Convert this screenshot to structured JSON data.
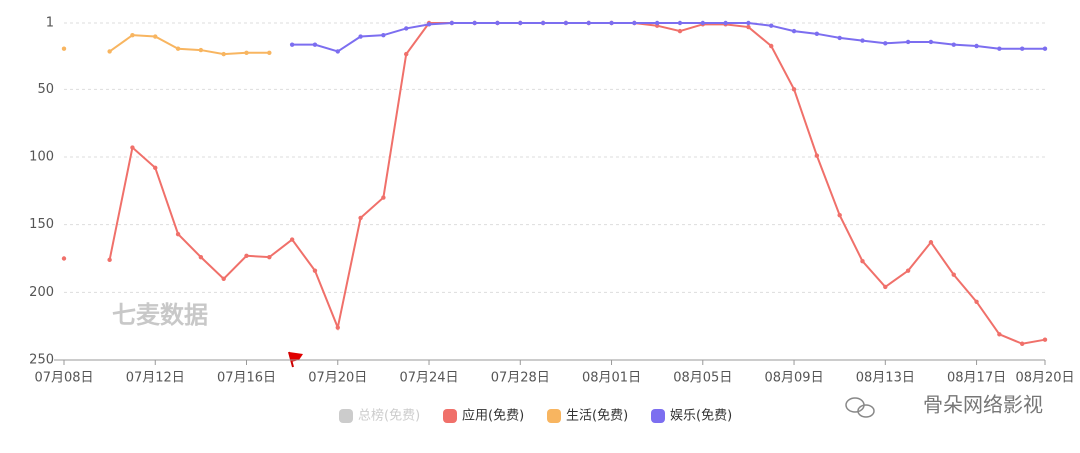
{
  "chart_data": {
    "type": "line",
    "categories": [
      "07月08日",
      null,
      null,
      null,
      "07月12日",
      null,
      null,
      null,
      "07月16日",
      null,
      null,
      null,
      "07月20日",
      null,
      null,
      null,
      "07月24日",
      null,
      null,
      null,
      "07月28日",
      null,
      null,
      null,
      "08月01日",
      null,
      null,
      null,
      "08月05日",
      null,
      null,
      null,
      "08月09日",
      null,
      null,
      null,
      "08月13日",
      null,
      null,
      null,
      "08月17日",
      null,
      null,
      "08月20日"
    ],
    "ylim": [
      1,
      250
    ],
    "yticks": [
      1,
      50,
      100,
      150,
      200,
      250
    ],
    "y_inverted": true,
    "grid": true,
    "legend": "bottom",
    "watermark": "七麦数据",
    "source": "骨朵网络影视",
    "series": [
      {
        "name": "总榜(免费)",
        "color": "#cccccc",
        "hidden": true,
        "values": [
          null,
          null,
          null,
          null,
          null,
          null,
          null,
          null,
          null,
          null,
          null,
          null,
          null,
          null,
          null,
          null,
          null,
          null,
          null,
          null,
          null,
          null,
          null,
          null,
          null,
          null,
          null,
          null,
          null,
          null,
          null,
          null,
          null,
          null,
          null,
          null,
          null,
          null,
          null,
          null,
          null,
          null,
          null,
          null
        ]
      },
      {
        "name": "应用(免费)",
        "color": "#f0706a",
        "values": [
          175,
          null,
          176,
          93,
          108,
          157,
          174,
          190,
          173,
          174,
          161,
          184,
          226,
          145,
          130,
          24,
          1,
          1,
          1,
          1,
          1,
          1,
          1,
          1,
          1,
          1,
          3,
          7,
          2,
          2,
          4,
          18,
          50,
          99,
          143,
          177,
          196,
          184,
          163,
          187,
          207,
          231,
          238,
          235
        ]
      },
      {
        "name": "生活(免费)",
        "color": "#f8b560",
        "values": [
          20,
          null,
          22,
          10,
          11,
          20,
          21,
          24,
          23,
          23,
          null,
          null,
          null,
          null,
          null,
          null,
          null,
          null,
          null,
          null,
          null,
          null,
          null,
          null,
          null,
          null,
          null,
          null,
          null,
          null,
          null,
          null,
          null,
          null,
          null,
          null,
          null,
          null,
          null,
          null,
          null,
          null,
          null,
          null
        ]
      },
      {
        "name": "娱乐(免费)",
        "color": "#7c6ef0",
        "values": [
          null,
          null,
          null,
          null,
          null,
          null,
          null,
          null,
          null,
          null,
          17,
          17,
          22,
          11,
          10,
          5,
          2,
          1,
          1,
          1,
          1,
          1,
          1,
          1,
          1,
          1,
          1,
          1,
          1,
          1,
          1,
          3,
          7,
          9,
          12,
          14,
          16,
          15,
          15,
          17,
          18,
          20,
          20,
          20
        ]
      }
    ]
  }
}
